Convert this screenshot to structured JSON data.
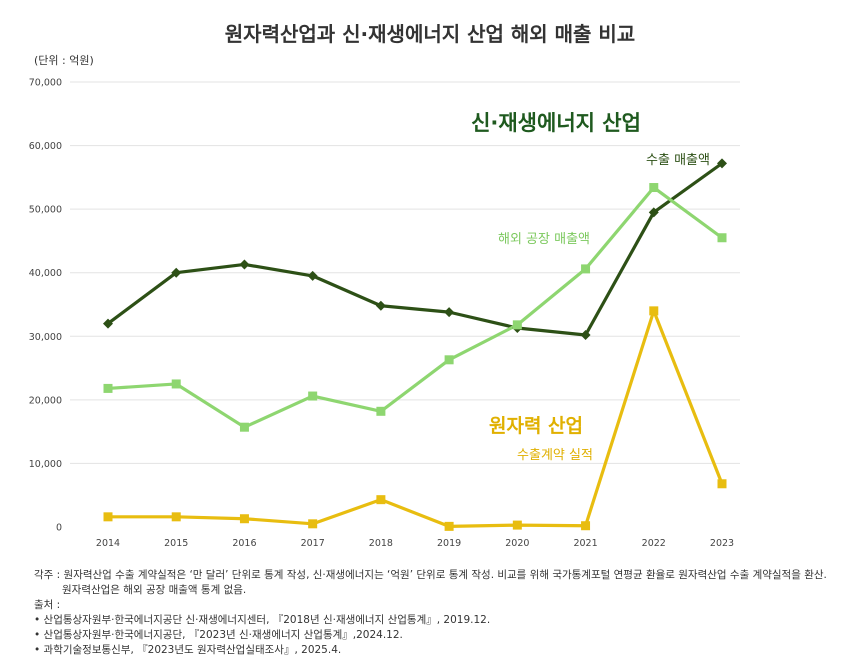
{
  "title": "원자력산업과 신·재생에너지 산업 해외 매출 비교",
  "unit": "(단위 : 억원)",
  "chart_data": {
    "type": "line",
    "x": [
      "2014",
      "2015",
      "2016",
      "2017",
      "2018",
      "2019",
      "2020",
      "2021",
      "2022",
      "2023"
    ],
    "ylim": [
      0,
      70000
    ],
    "yticks": [
      "0",
      "10,000",
      "20,000",
      "30,000",
      "40,000",
      "50,000",
      "60,000",
      "70,000"
    ],
    "ytick_values": [
      0,
      10000,
      20000,
      30000,
      40000,
      50000,
      60000,
      70000
    ],
    "grid": true,
    "series": [
      {
        "name": "수출 매출액",
        "group": "신·재생에너지 산업",
        "color": "#2d5016",
        "marker": "diamond",
        "values": [
          32000,
          40000,
          41300,
          39500,
          34800,
          33800,
          31300,
          30200,
          49500,
          57200
        ]
      },
      {
        "name": "해외 공장 매출액",
        "group": "신·재생에너지 산업",
        "color": "#8ed670",
        "marker": "square",
        "values": [
          21800,
          22500,
          15700,
          20600,
          18200,
          26300,
          31800,
          40600,
          53400,
          45500
        ]
      },
      {
        "name": "수출계약 실적",
        "group": "원자력 산업",
        "color": "#e8bd10",
        "marker": "square",
        "values": [
          1600,
          1600,
          1300,
          500,
          4300,
          100,
          300,
          200,
          34000,
          6800
        ]
      }
    ],
    "annotations": {
      "renewable_group": "신·재생에너지 산업",
      "nuclear_group": "원자력 산업"
    }
  },
  "notes": {
    "caption_line1": "각주 : 원자력산업 수출 계약실적은 ‘만 달러’ 단위로 통계 작성, 신·재생에너지는 ‘억원’ 단위로 통계 작성. 비교를 위해 국가통계포털 연평균 환율로 원자력산업 수출 계약실적을 환산.",
    "caption_line2": "원자력산업은 해외 공장 매출액 통계 없음.",
    "source_label": "출처 :",
    "sources": [
      "•  산업통상자원부·한국에너지공단 신·재생에너지센터, 『2018년 신·재생에너지 산업통계』,  2019.12.",
      "•  산업통상자원부·한국에너지공단, 『2023년 신·재생에너지 산업통계』,2024.12.",
      "•  과학기술정보통신부, 『2023년도 원자력산업실태조사』, 2025.4."
    ]
  }
}
